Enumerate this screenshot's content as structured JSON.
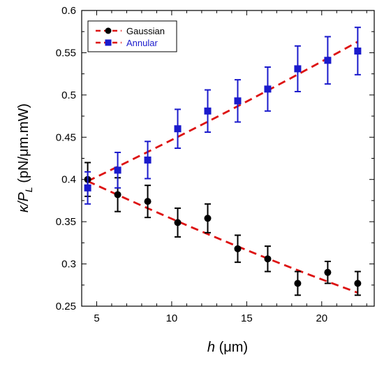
{
  "chart_data": {
    "type": "scatter",
    "title": "",
    "xlabel": {
      "var": "h",
      "unit": " (μm)"
    },
    "ylabel": {
      "var": "κ/P",
      "sub": "L",
      "unit": " (pN/μm.mW)"
    },
    "xlim": [
      4,
      23.5
    ],
    "ylim": [
      0.25,
      0.6
    ],
    "xticks": [
      5,
      10,
      15,
      20
    ],
    "yticks": [
      0.25,
      0.3,
      0.35,
      0.4,
      0.45,
      0.5,
      0.55,
      0.6
    ],
    "grid": false,
    "legend_position": "top-left",
    "series": [
      {
        "name": "Gaussian",
        "color": "#000000",
        "fit_color": "#dd1111",
        "marker": "circle",
        "x": [
          4.4,
          6.4,
          8.4,
          10.4,
          12.4,
          14.4,
          16.4,
          18.4,
          20.4,
          22.4
        ],
        "y": [
          0.4,
          0.382,
          0.374,
          0.349,
          0.354,
          0.318,
          0.306,
          0.277,
          0.29,
          0.277
        ],
        "err": [
          0.02,
          0.02,
          0.019,
          0.017,
          0.017,
          0.016,
          0.015,
          0.014,
          0.013,
          0.014
        ],
        "fit_x": [
          4.4,
          22.4
        ],
        "fit_y": [
          0.398,
          0.266
        ],
        "fit_curvature": 0.004
      },
      {
        "name": "Annular",
        "color": "#1a1acc",
        "fit_color": "#dd1111",
        "marker": "square",
        "x": [
          4.4,
          6.4,
          8.4,
          10.4,
          12.4,
          14.4,
          16.4,
          18.4,
          20.4,
          22.4
        ],
        "y": [
          0.39,
          0.411,
          0.423,
          0.46,
          0.481,
          0.493,
          0.507,
          0.531,
          0.541,
          0.552
        ],
        "err": [
          0.019,
          0.021,
          0.022,
          0.023,
          0.025,
          0.025,
          0.026,
          0.027,
          0.028,
          0.028
        ],
        "fit_x": [
          4.4,
          22.4
        ],
        "fit_y": [
          0.398,
          0.563
        ],
        "fit_curvature": 0.003
      }
    ]
  }
}
